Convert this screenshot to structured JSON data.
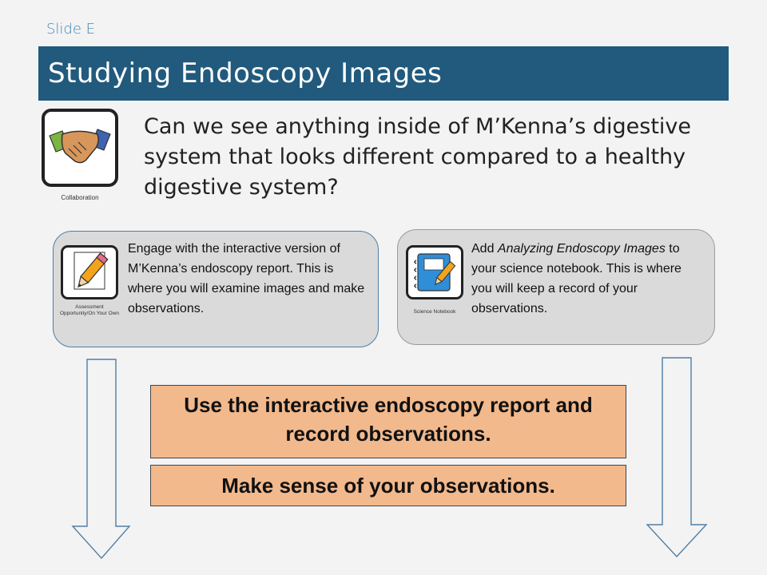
{
  "slide": {
    "label": "Slide E",
    "title": "Studying Endoscopy Images",
    "question": "Can we see anything inside of M’Kenna’s digestive system that looks different compared to a healthy digestive system?"
  },
  "icons": {
    "collaboration": {
      "icon": "handshake-icon",
      "caption": "Collaboration"
    },
    "assessment": {
      "icon": "pencil-icon",
      "caption_line1": "Assessment",
      "caption_line2": "Opportunity/On Your Own"
    },
    "notebook": {
      "icon": "notebook-icon",
      "caption": "Science Notebook"
    }
  },
  "cards": {
    "left": {
      "text": "Engage with the interactive version of M’Kenna’s endoscopy report. This is where you will examine images and make observations."
    },
    "right": {
      "prefix": "Add ",
      "italic": "Analyzing Endoscopy Images",
      "suffix": " to your science notebook. This is where you will keep a record of your observations."
    }
  },
  "tasks": {
    "task1": "Use the interactive endoscopy report and record observations.",
    "task2": "Make sense of your observations."
  },
  "colors": {
    "title_bar": "#215a7c",
    "task_fill": "#f2b98d",
    "card_fill": "#dadada",
    "left_card_border": "#4f7ea6",
    "slide_label": "#3d86b8"
  }
}
